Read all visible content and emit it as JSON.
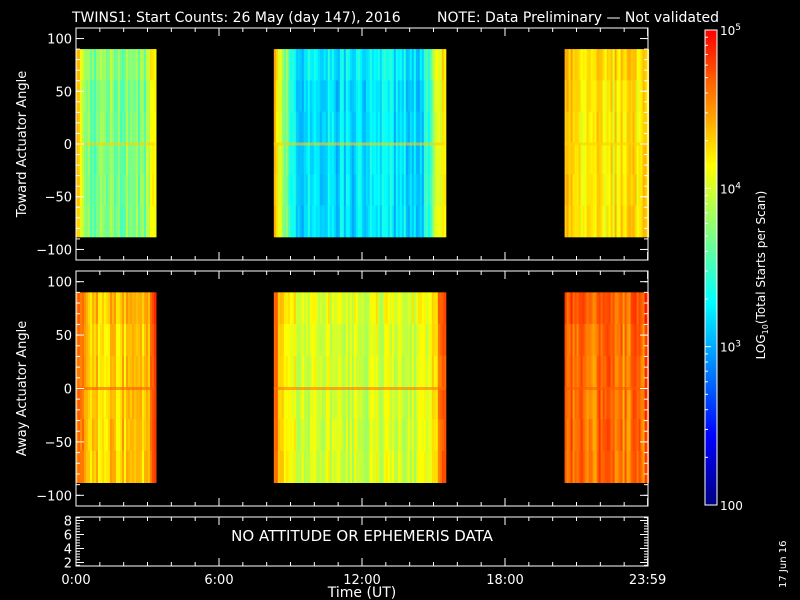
{
  "title": {
    "main": "TWINS1: Start Counts: 26 May (day 147), 2016",
    "note": "NOTE: Data Preliminary — Not validated",
    "note_color": "#ff0000"
  },
  "x_axis": {
    "label": "Time (UT)",
    "range_hours": [
      0,
      24
    ],
    "ticks": [
      {
        "value": 0,
        "label": "0:00"
      },
      {
        "value": 6,
        "label": "6:00"
      },
      {
        "value": 12,
        "label": "12:00"
      },
      {
        "value": 18,
        "label": "18:00"
      },
      {
        "value": 23.983,
        "label": "23:59"
      }
    ]
  },
  "colorbar": {
    "label": "LOG10(Total Starts per Scan)",
    "scale": "log",
    "range": [
      100,
      100000
    ],
    "ticks": [
      {
        "value": 100000,
        "label": "10^5"
      },
      {
        "value": 10000,
        "label": "10^4"
      },
      {
        "value": 1000,
        "label": "10^3"
      },
      {
        "value": 100,
        "label": "100"
      }
    ],
    "colormap": [
      "#000080",
      "#0000ff",
      "#0080ff",
      "#00ffff",
      "#80ff80",
      "#ffff00",
      "#ff8000",
      "#ff0000"
    ]
  },
  "chart_data": [
    {
      "type": "heatmap",
      "panel": "toward",
      "ylabel": "Toward Actuator Angle",
      "ylim": [
        -110,
        110
      ],
      "yticks": [
        100,
        50,
        0,
        -50,
        -100
      ],
      "data_angle_range": [
        -88,
        90
      ],
      "segments": [
        {
          "start_hour": 0.0,
          "end_hour": 3.3,
          "typical_log_counts": 3.7,
          "edge_log_counts": 4.3
        },
        {
          "start_hour": 8.3,
          "end_hour": 15.5,
          "typical_log_counts": 3.2,
          "edge_log_counts": 4.3
        },
        {
          "start_hour": 20.5,
          "end_hour": 24.0,
          "typical_log_counts": 4.2,
          "edge_log_counts": 4.3
        }
      ]
    },
    {
      "type": "heatmap",
      "panel": "away",
      "ylabel": "Away Actuator Angle",
      "ylim": [
        -110,
        110
      ],
      "yticks": [
        100,
        50,
        0,
        -50,
        -100
      ],
      "data_angle_range": [
        -88,
        90
      ],
      "segments": [
        {
          "start_hour": 0.0,
          "end_hour": 3.3,
          "typical_log_counts": 4.3,
          "edge_log_counts": 4.7
        },
        {
          "start_hour": 8.3,
          "end_hour": 15.5,
          "typical_log_counts": 4.0,
          "edge_log_counts": 4.6
        },
        {
          "start_hour": 20.5,
          "end_hour": 24.0,
          "typical_log_counts": 4.6,
          "edge_log_counts": 4.7
        }
      ]
    }
  ],
  "bottom_panel": {
    "yticks": [
      8,
      6,
      4,
      2
    ],
    "ylim": [
      1.5,
      8.5
    ],
    "message": "NO ATTITUDE OR EPHEMERIS DATA"
  },
  "generated_date": "17 Jun 16"
}
